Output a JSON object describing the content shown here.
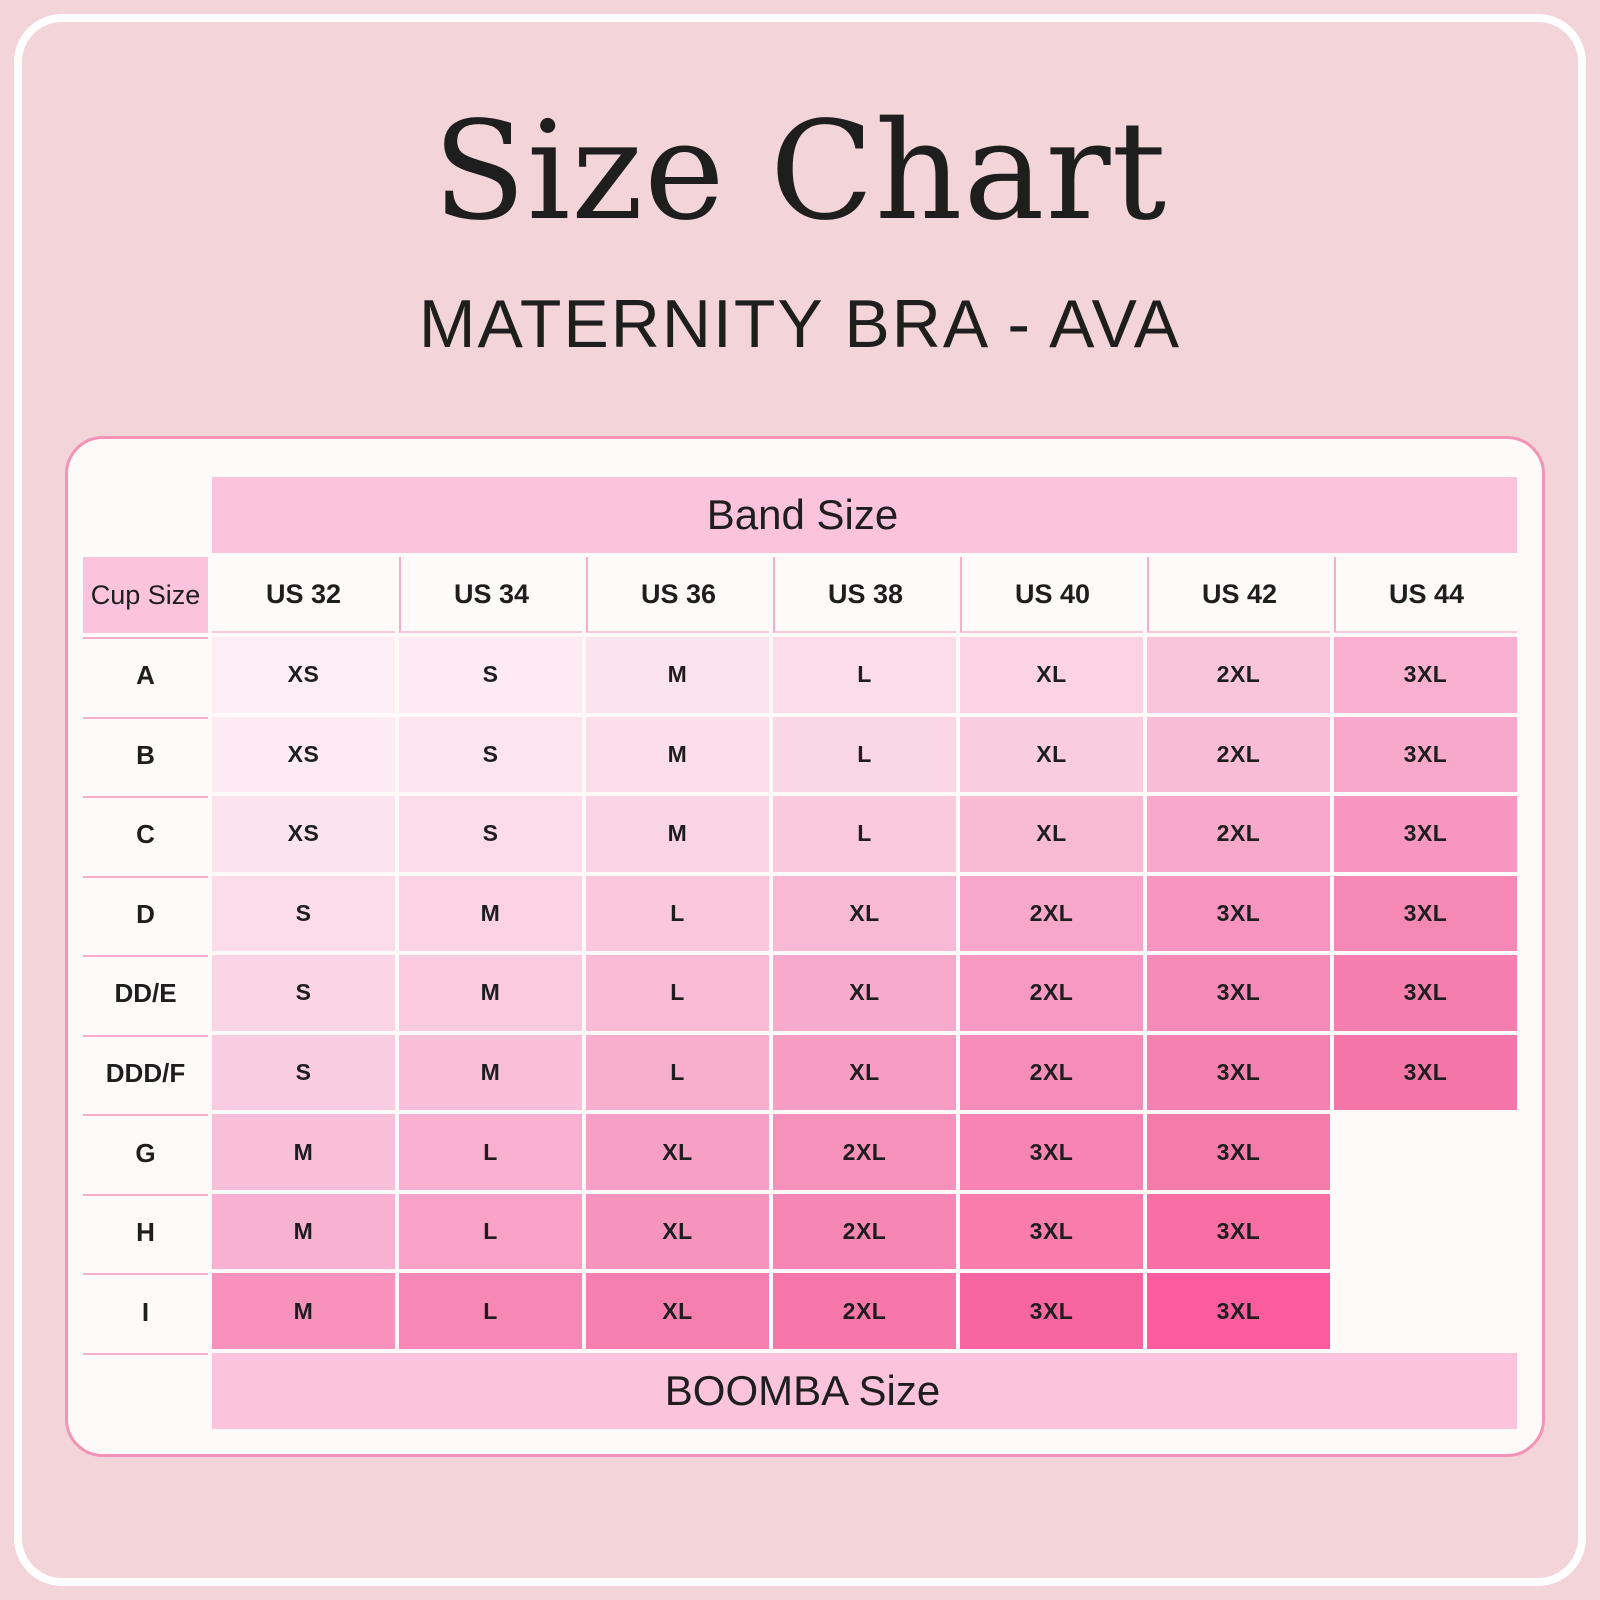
{
  "page": {
    "title": "Size Chart",
    "subtitle": "MATERNITY BRA - AVA"
  },
  "chart_data": {
    "type": "table",
    "title": "Size Chart",
    "subtitle": "MATERNITY BRA - AVA",
    "band_axis_label": "Band Size",
    "cup_axis_label": "Cup Size",
    "boomba_label": "BOOMBA Size",
    "band_sizes": [
      "US 32",
      "US 34",
      "US 36",
      "US 38",
      "US 40",
      "US 42",
      "US 44"
    ],
    "rows": [
      {
        "cup": "A",
        "values": [
          "XS",
          "S",
          "M",
          "L",
          "XL",
          "2XL",
          "3XL"
        ]
      },
      {
        "cup": "B",
        "values": [
          "XS",
          "S",
          "M",
          "L",
          "XL",
          "2XL",
          "3XL"
        ]
      },
      {
        "cup": "C",
        "values": [
          "XS",
          "S",
          "M",
          "L",
          "XL",
          "2XL",
          "3XL"
        ]
      },
      {
        "cup": "D",
        "values": [
          "S",
          "M",
          "L",
          "XL",
          "2XL",
          "3XL",
          "3XL"
        ]
      },
      {
        "cup": "DD/E",
        "values": [
          "S",
          "M",
          "L",
          "XL",
          "2XL",
          "3XL",
          "3XL"
        ]
      },
      {
        "cup": "DDD/F",
        "values": [
          "S",
          "M",
          "L",
          "XL",
          "2XL",
          "3XL",
          "3XL"
        ]
      },
      {
        "cup": "G",
        "values": [
          "M",
          "L",
          "XL",
          "2XL",
          "3XL",
          "3XL",
          null
        ]
      },
      {
        "cup": "H",
        "values": [
          "M",
          "L",
          "XL",
          "2XL",
          "3XL",
          "3XL",
          null
        ]
      },
      {
        "cup": "I",
        "values": [
          "M",
          "L",
          "XL",
          "2XL",
          "3XL",
          "3XL",
          null
        ]
      }
    ],
    "cell_colors": [
      [
        "#fdeef5",
        "#fdeaf2",
        "#fce4ee",
        "#fcdcea",
        "#fbd3e4",
        "#fac5db",
        "#f9b0d1"
      ],
      [
        "#fdeaf2",
        "#fce5ef",
        "#fcdeeb",
        "#fbd6e6",
        "#facce0",
        "#f9bcd6",
        "#f8a8cb"
      ],
      [
        "#fce4ee",
        "#fcdcea",
        "#fbd4e5",
        "#fac9de",
        "#f9bad4",
        "#f8a8cb",
        "#f796c0"
      ],
      [
        "#fcdcea",
        "#fbd3e4",
        "#fac7dd",
        "#f9b8d3",
        "#f8a7ca",
        "#f795c0",
        "#f688b6"
      ],
      [
        "#fbd4e5",
        "#facadf",
        "#f9bbd5",
        "#f8aacc",
        "#f799c2",
        "#f68ab8",
        "#f57eae"
      ],
      [
        "#facce1",
        "#f9bed8",
        "#f8aecd",
        "#f79dc3",
        "#f68db9",
        "#f581b0",
        "#f476a9"
      ],
      [
        "#f9bed8",
        "#f8afd0",
        "#f79fc5",
        "#f691bc",
        "#f685b3",
        "#f57bab",
        null
      ],
      [
        "#f8b1d1",
        "#f7a2c6",
        "#f694bd",
        "#f687b5",
        "#f87cac",
        "#f96ea4",
        null
      ],
      [
        "#f892bc",
        "#f788b5",
        "#f77fb0",
        "#f777aa",
        "#f965a1",
        "#fb5c9d",
        null
      ]
    ]
  },
  "colors": {
    "page_bg": "#f3d5d9",
    "frame_stroke": "#ffffff",
    "card_bg": "#fffafa",
    "card_border": "#f493b8",
    "header_pink": "#fbc3dc",
    "separator_pink": "#f5afcb",
    "text_dark": "#1e1e1e",
    "gradient_lightest": "#fdeef5",
    "gradient_darkest": "#fb5c9d"
  }
}
